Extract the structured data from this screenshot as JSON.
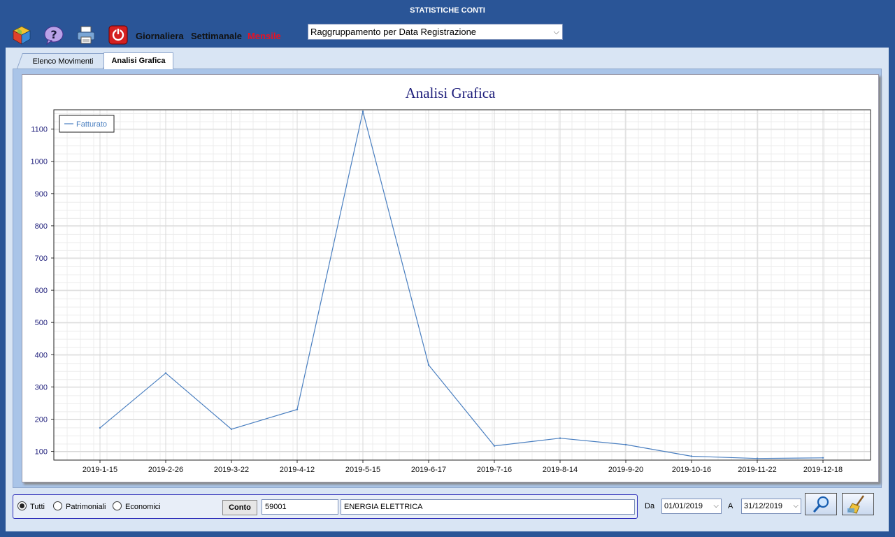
{
  "window": {
    "title": "STATISTICHE CONTI"
  },
  "toolbar": {
    "icons": [
      "cube-icon",
      "help-icon",
      "printer-icon",
      "power-icon"
    ],
    "period_daily": "Giornaliera",
    "period_weekly": "Settimanale",
    "period_monthly": "Mensile",
    "period_active_color": "#e81123",
    "grouping_value": "Raggruppamento per Data Registrazione"
  },
  "tabs": {
    "tab1": "Elenco Movimenti",
    "tab2": "Analisi Grafica"
  },
  "chart_data": {
    "type": "line",
    "title": "Analisi Grafica",
    "series": [
      {
        "name": "Fatturato",
        "color": "#4a7fc0",
        "values": [
          173,
          343,
          169,
          230,
          1155,
          368,
          117,
          141,
          121,
          85,
          78,
          80
        ]
      }
    ],
    "categories": [
      "2019-1-15",
      "2019-2-26",
      "2019-3-22",
      "2019-4-12",
      "2019-5-15",
      "2019-6-17",
      "2019-7-16",
      "2019-8-14",
      "2019-9-20",
      "2019-10-16",
      "2019-11-22",
      "2019-12-18"
    ],
    "yticks": [
      "100",
      "200",
      "300",
      "400",
      "500",
      "600",
      "700",
      "800",
      "900",
      "1000",
      "1100"
    ],
    "ylim": [
      73,
      1160
    ],
    "grid": true,
    "legend_position": "top-left"
  },
  "filter": {
    "radio_all": "Tutti",
    "radio_patrimoniali": "Patrimoniali",
    "radio_economici": "Economici",
    "selected": "Tutti",
    "conto_label": "Conto",
    "conto_code": "59001",
    "conto_desc": "ENERGIA ELETTRICA"
  },
  "dates": {
    "from_label": "Da",
    "from_value": "01/01/2019",
    "to_label": "A",
    "to_value": "31/12/2019"
  },
  "actions": {
    "search_icon": "magnifier-icon",
    "clear_icon": "broom-icon"
  }
}
